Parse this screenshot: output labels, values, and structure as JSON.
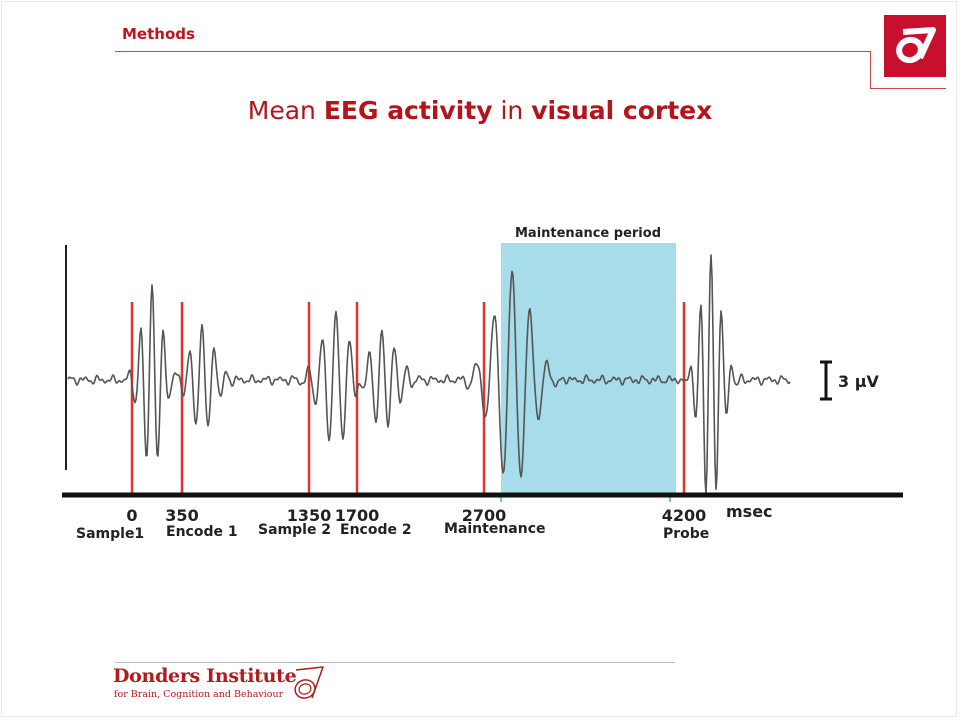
{
  "header": {
    "section": "Methods"
  },
  "title": {
    "plain1": "Mean ",
    "bold1": "EEG activity",
    "plain2": " in ",
    "bold2": "visual cortex"
  },
  "figure": {
    "maintenance_label": "Maintenance period",
    "scale_label": "3 μV",
    "unit_label": "msec",
    "timeline": [
      {
        "value": "0",
        "event": "Sample1"
      },
      {
        "value": "350",
        "event": "Encode 1"
      },
      {
        "value": "1350",
        "event": "Sample 2"
      },
      {
        "value": "1700",
        "event": "Encode 2"
      },
      {
        "value": "2700",
        "event": "Maintenance"
      },
      {
        "value": "4200",
        "event": "Probe"
      }
    ],
    "colors": {
      "marker": "#e8302e",
      "maintenance": "#a7dcea",
      "trace": "#555555",
      "axis": "#111111"
    }
  },
  "footer": {
    "institute": "Donders Institute",
    "subtitle": "for Brain, Cognition and Behaviour"
  }
}
